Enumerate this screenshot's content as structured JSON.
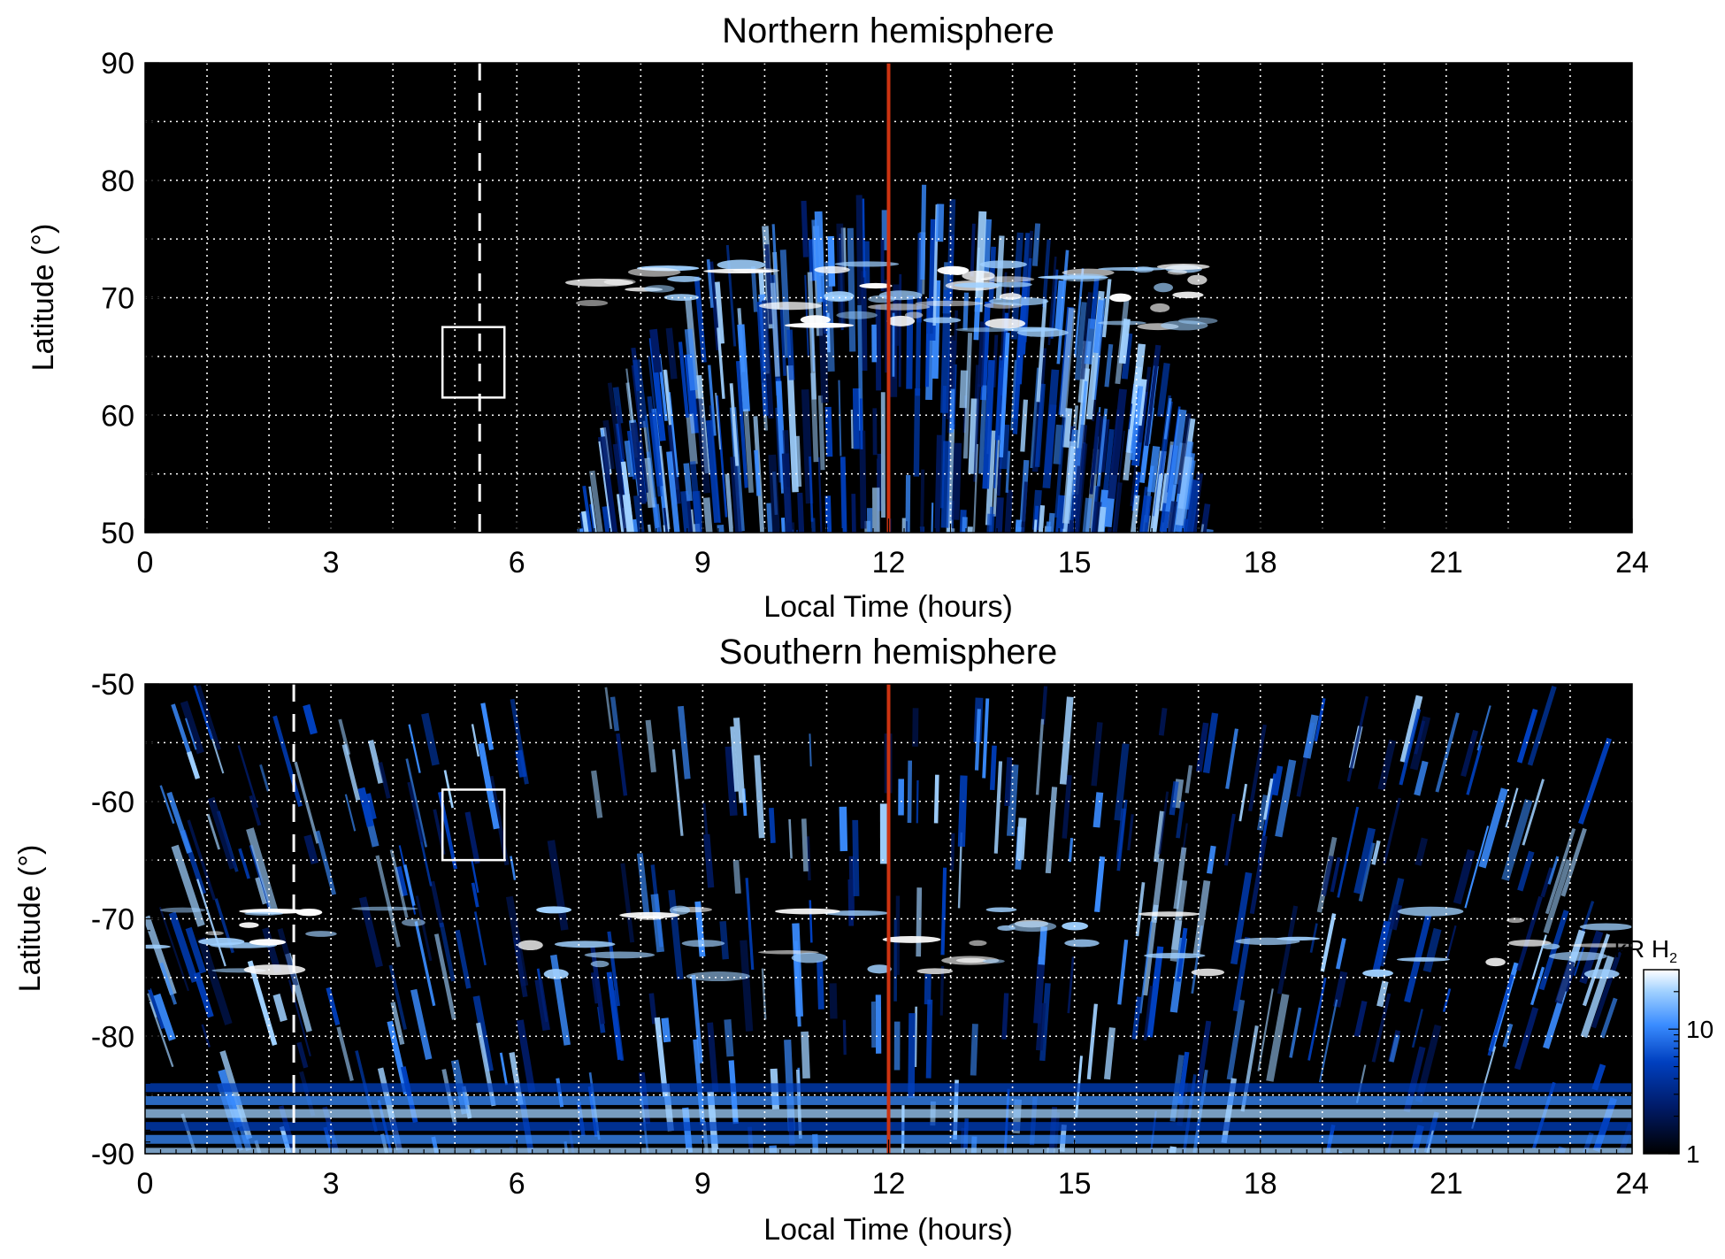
{
  "chart_data": [
    {
      "type": "heatmap",
      "title": "Northern hemisphere",
      "xlabel": "Local Time (hours)",
      "ylabel": "Latitude (°)",
      "xlim": [
        0,
        24
      ],
      "ylim": [
        50,
        90
      ],
      "x_ticks": [
        0,
        3,
        6,
        9,
        12,
        15,
        18,
        21,
        24
      ],
      "x_tick_labels": [
        "0",
        "3",
        "6",
        "9",
        "12",
        "15",
        "18",
        "21",
        "24"
      ],
      "y_ticks": [
        50,
        60,
        70,
        80,
        90
      ],
      "y_tick_labels": [
        "50",
        "60",
        "70",
        "80",
        "90"
      ],
      "grid": true,
      "emission_region": {
        "lt_start": 7.0,
        "lt_end": 17.2,
        "max_latitude": 80,
        "auroral_oval_latitude": 70
      },
      "reference_line": {
        "local_time": 12,
        "color": "#cc3311"
      },
      "dashed_marker": {
        "local_time": 5.4,
        "latitude_range": [
          50,
          90
        ]
      },
      "box": {
        "local_time": [
          4.8,
          5.8
        ],
        "latitude": [
          61.5,
          67.5
        ]
      }
    },
    {
      "type": "heatmap",
      "title": "Southern hemisphere",
      "xlabel": "Local Time (hours)",
      "ylabel": "Latitude (°)",
      "xlim": [
        0,
        24
      ],
      "ylim": [
        -90,
        -50
      ],
      "x_ticks": [
        0,
        3,
        6,
        9,
        12,
        15,
        18,
        21,
        24
      ],
      "x_tick_labels": [
        "0",
        "3",
        "6",
        "9",
        "12",
        "15",
        "18",
        "21",
        "24"
      ],
      "y_ticks": [
        -90,
        -80,
        -70,
        -60,
        -50
      ],
      "y_tick_labels": [
        "-90",
        "-80",
        "-70",
        "-60",
        "-50"
      ],
      "grid": true,
      "emission_region": {
        "lt_start": 0,
        "lt_end": 24,
        "auroral_oval_latitude": -72
      },
      "reference_line": {
        "local_time": 12,
        "color": "#cc3311"
      },
      "dashed_marker": {
        "local_time": 2.4,
        "latitude_range": [
          -90,
          -50
        ]
      },
      "box": {
        "local_time": [
          4.8,
          5.8
        ],
        "latitude": [
          -65,
          -59
        ]
      }
    }
  ],
  "colorbar": {
    "label_main": "kR H",
    "label_sub": "2",
    "scale": "log",
    "range": [
      1,
      30
    ],
    "tick_labels": [
      "1",
      "10"
    ],
    "colors": [
      "#000000",
      "#001a66",
      "#0040c0",
      "#3a8cff",
      "#9fd0ff",
      "#ffffff"
    ]
  }
}
